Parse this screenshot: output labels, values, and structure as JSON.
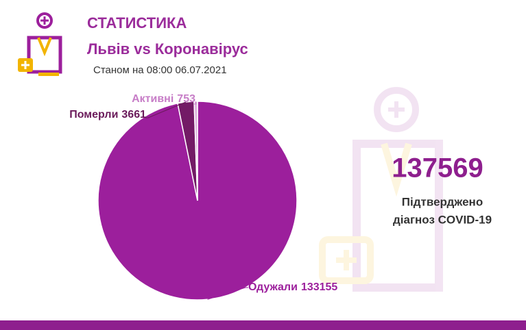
{
  "chart_data": {
    "type": "pie",
    "title": "СТАТИСТИКА",
    "subtitle": "Львів vs Коронавірус",
    "date_note": "Станом на 08:00 06.07.2021",
    "categories": [
      "Одужали",
      "Померли",
      "Активні"
    ],
    "values": [
      133155,
      3661,
      753
    ],
    "colors": [
      "#9c1f9c",
      "#731b66",
      "#dcb0dc"
    ],
    "total": 137569,
    "total_caption": [
      "Підтверджено",
      "діагноз COVID-19"
    ]
  }
}
